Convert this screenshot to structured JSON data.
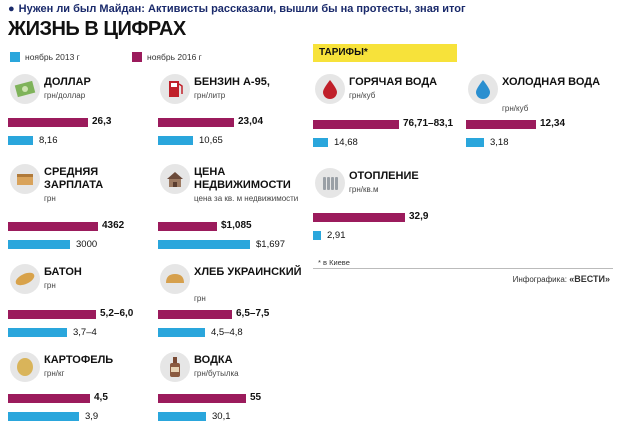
{
  "headline": "Нужен ли был Майдан: Активисты рассказали, вышли бы на протесты, зная итог",
  "title": "ЖИЗНЬ В ЦИФРАХ",
  "legend": {
    "a": "ноябрь 2013 г",
    "b": "ноябрь 2016 г"
  },
  "colors": {
    "a": "#2aa6dc",
    "b": "#9b1b5c",
    "tariff_header": "#f7e23a"
  },
  "tariffs_header": "ТАРИФЫ*",
  "note": "* в Киеве",
  "credit": {
    "prefix": "Инфографика:",
    "brand": "«ВЕСТИ»"
  },
  "chart_data": {
    "type": "bar",
    "series": [
      {
        "name": "ноябрь 2013 г"
      },
      {
        "name": "ноябрь 2016 г"
      }
    ],
    "items": [
      {
        "name": "ДОЛЛАР",
        "unit": "грн/доллар",
        "icon": "dollar-bill-icon",
        "label_2016": "26,3",
        "label_2013": "8,16",
        "value_2016": 26.3,
        "value_2013": 8.16,
        "scale_max": 26.3
      },
      {
        "name": "БЕНЗИН А-95,",
        "unit": "грн/литр",
        "icon": "gas-pump-icon",
        "label_2016": "23,04",
        "label_2013": "10,65",
        "value_2016": 23.04,
        "value_2013": 10.65,
        "scale_max": 23.04
      },
      {
        "name": "СРЕДНЯЯ ЗАРПЛАТА",
        "unit": "грн",
        "icon": "wallet-icon",
        "label_2016": "4362",
        "label_2013": "3000",
        "value_2016": 4362,
        "value_2013": 3000,
        "scale_max": 4362
      },
      {
        "name": "ЦЕНА НЕДВИЖИМОСТИ",
        "unit": "цена за кв. м недвижимости",
        "icon": "house-icon",
        "label_2016": "$1,085",
        "label_2013": "$1,697",
        "value_2016": 1085,
        "value_2013": 1697,
        "scale_max": 1697
      },
      {
        "name": "БАТОН",
        "unit": "грн",
        "icon": "baton-icon",
        "label_2016": "5,2–6,0",
        "label_2013": "3,7–4",
        "value_2016": 6.0,
        "value_2013": 4.0,
        "scale_max": 6.0
      },
      {
        "name": "ХЛЕБ УКРАИНСКИЙ",
        "unit": "грн",
        "icon": "bread-icon",
        "label_2016": "6,5–7,5",
        "label_2013": "4,5–4,8",
        "value_2016": 7.5,
        "value_2013": 4.8,
        "scale_max": 7.5
      },
      {
        "name": "КАРТОФЕЛЬ",
        "unit": "грн/кг",
        "icon": "potato-icon",
        "label_2016": "4,5",
        "label_2013": "3,9",
        "value_2016": 4.5,
        "value_2013": 3.9,
        "scale_max": 4.5
      },
      {
        "name": "ВОДКА",
        "unit": "грн/бутылка",
        "icon": "vodka-bottle-icon",
        "label_2016": "55",
        "label_2013": "30,1",
        "value_2016": 55,
        "value_2013": 30.1,
        "scale_max": 55
      },
      {
        "name": "ГОРЯЧАЯ ВОДА",
        "unit": "грн/куб",
        "icon": "hot-water-drop-icon",
        "label_2016": "76,71–83,1",
        "label_2013": "14,68",
        "value_2016": 83.1,
        "value_2013": 14.68,
        "scale_max": 83.1
      },
      {
        "name": "ХОЛОДНАЯ ВОДА",
        "unit": "грн/куб",
        "icon": "cold-water-drop-icon",
        "label_2016": "12,34",
        "label_2013": "3,18",
        "value_2016": 12.34,
        "value_2013": 3.18,
        "scale_max": 12.34
      },
      {
        "name": "ОТОПЛЕНИЕ",
        "unit": "грн/кв.м",
        "icon": "radiator-icon",
        "label_2016": "32,9",
        "label_2013": "2,91",
        "value_2016": 32.9,
        "value_2013": 2.91,
        "scale_max": 32.9
      }
    ]
  }
}
